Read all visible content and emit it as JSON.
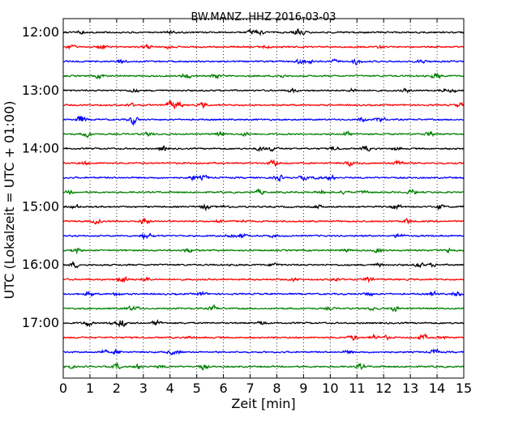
{
  "chart_data": {
    "type": "line",
    "title": "BW.MANZ..HHZ 2016-03-03",
    "xlabel": "Zeit  [min]",
    "ylabel": "UTC (Lokalzeit = UTC + 01:00)",
    "xlim": [
      0,
      15
    ],
    "x_ticks": [
      "0",
      "1",
      "2",
      "3",
      "4",
      "5",
      "6",
      "7",
      "8",
      "9",
      "10",
      "11",
      "12",
      "13",
      "14",
      "15"
    ],
    "y_ticks": [
      "12:00",
      "13:00",
      "14:00",
      "15:00",
      "16:00",
      "17:00"
    ],
    "grid": "vertical dotted",
    "trace_start_times": [
      "12:00",
      "12:15",
      "12:30",
      "12:45",
      "13:00",
      "13:15",
      "13:30",
      "13:45",
      "14:00",
      "14:15",
      "14:30",
      "14:45",
      "15:00",
      "15:15",
      "15:30",
      "15:45",
      "16:00",
      "16:15",
      "16:30",
      "16:45",
      "17:00",
      "17:15",
      "17:30",
      "17:45"
    ],
    "trace_colors": [
      "#000000",
      "#ff0000",
      "#0000ff",
      "#008000"
    ]
  }
}
